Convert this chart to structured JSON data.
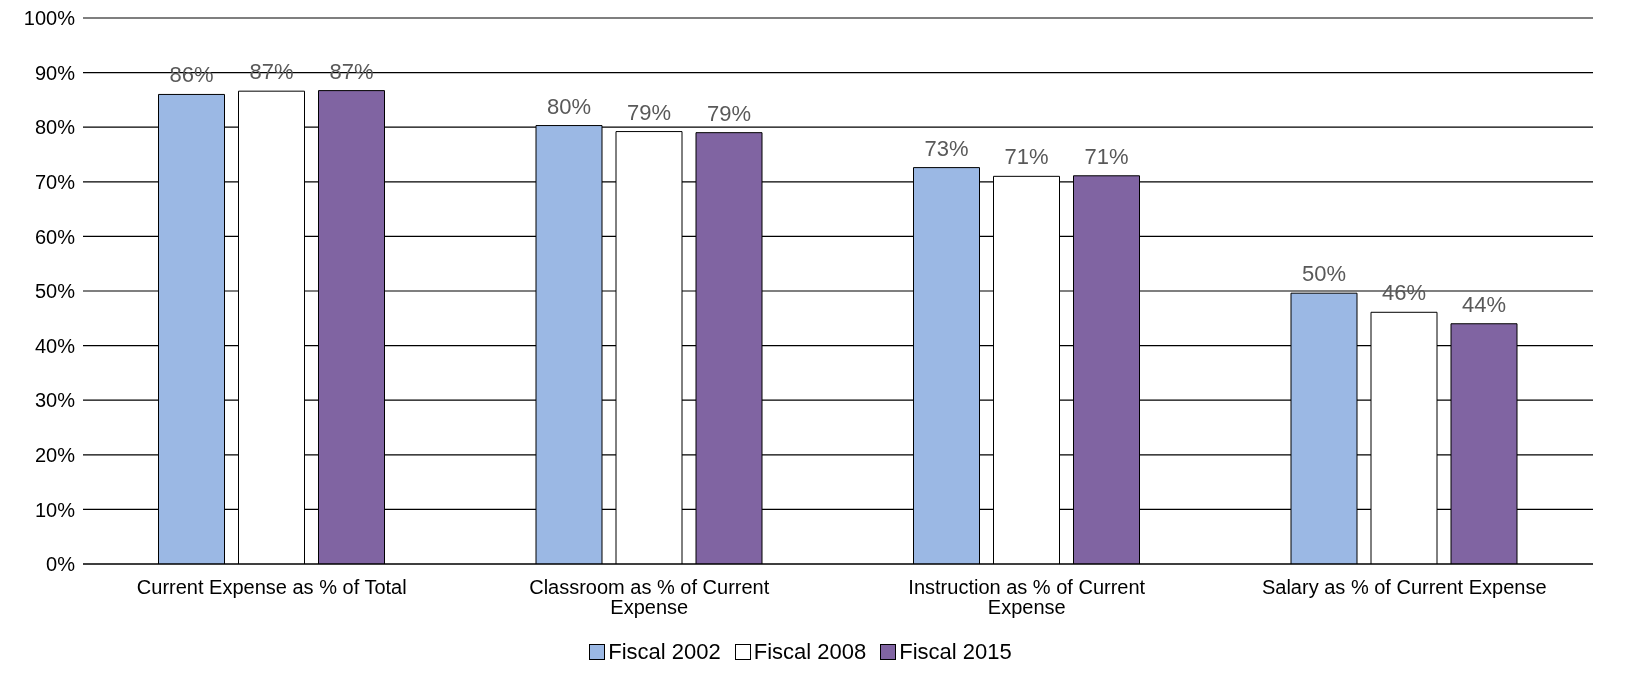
{
  "chart_data": {
    "type": "bar",
    "categories": [
      "Current Expense as % of Total",
      "Classroom as % of Current Expense",
      "Instruction as % of Current Expense",
      "Salary as % of Current Expense"
    ],
    "series": [
      {
        "name": "Fiscal 2002",
        "color": "#9bb8e4",
        "values": [
          86,
          80.3,
          72.6,
          49.6
        ],
        "value_labels": [
          "86%",
          "80%",
          "73%",
          "50%"
        ]
      },
      {
        "name": "Fiscal 2008",
        "color": "#ffffff",
        "values": [
          86.6,
          79.2,
          71,
          46.1
        ],
        "value_labels": [
          "87%",
          "79%",
          "71%",
          "46%"
        ]
      },
      {
        "name": "Fiscal 2015",
        "color": "#8064a2",
        "values": [
          86.7,
          79,
          71.1,
          44
        ],
        "value_labels": [
          "87%",
          "79%",
          "71%",
          "44%"
        ]
      }
    ],
    "ylim": [
      0,
      100
    ],
    "yticks": [
      {
        "value": 0,
        "label": "0%"
      },
      {
        "value": 10,
        "label": "10%"
      },
      {
        "value": 20,
        "label": "20%"
      },
      {
        "value": 30,
        "label": "30%"
      },
      {
        "value": 40,
        "label": "40%"
      },
      {
        "value": 50,
        "label": "50%"
      },
      {
        "value": 60,
        "label": "60%"
      },
      {
        "value": 70,
        "label": "70%"
      },
      {
        "value": 80,
        "label": "80%"
      },
      {
        "value": 90,
        "label": "90%"
      },
      {
        "value": 100,
        "label": "100%"
      }
    ],
    "grid": "y",
    "legend": "bottom"
  }
}
